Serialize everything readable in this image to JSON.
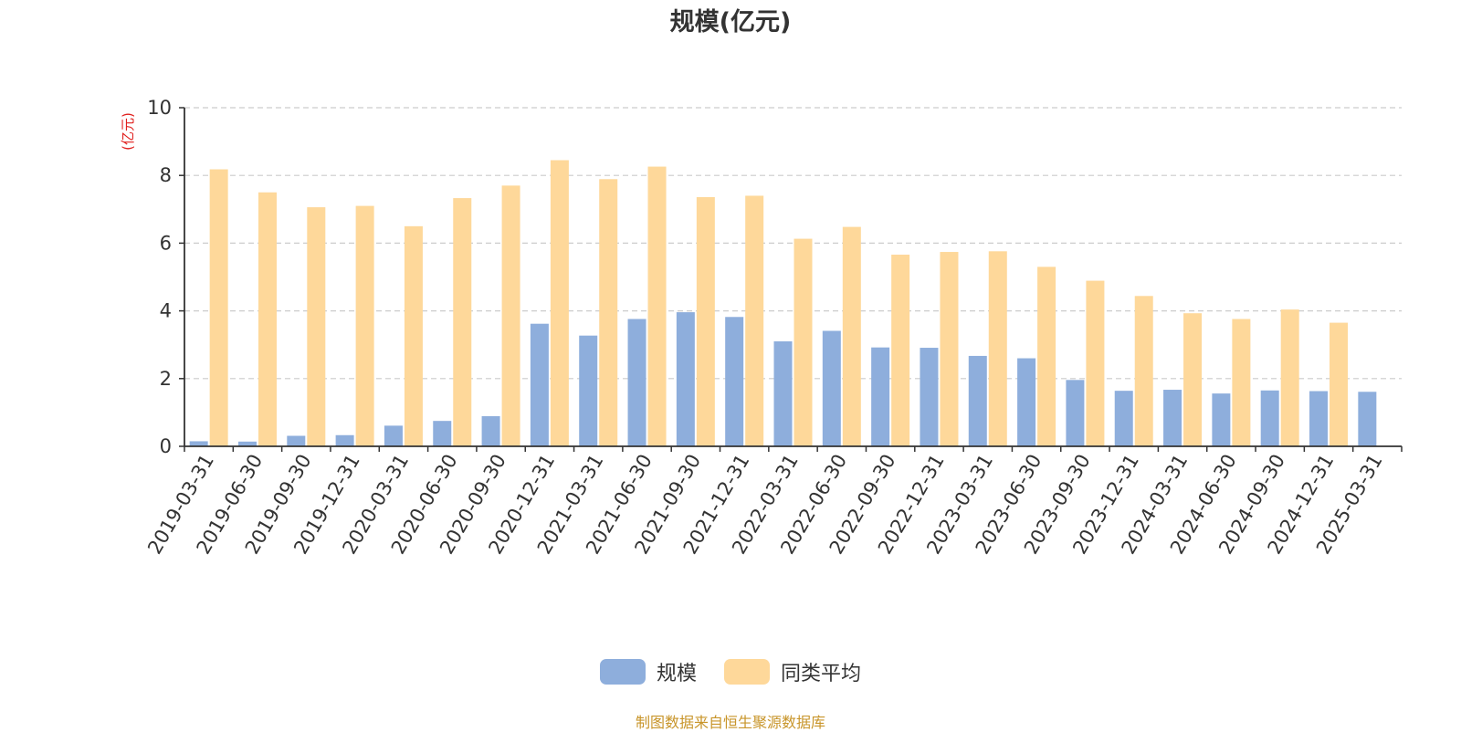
{
  "chart_data": {
    "type": "bar",
    "title": "规模(亿元)",
    "ylabel": "(亿元)",
    "ylim": [
      0,
      10
    ],
    "yticks": [
      0,
      2,
      4,
      6,
      8,
      10
    ],
    "grid": true,
    "legend_position": "bottom",
    "categories": [
      "2019-03-31",
      "2019-06-30",
      "2019-09-30",
      "2019-12-31",
      "2020-03-31",
      "2020-06-30",
      "2020-09-30",
      "2020-12-31",
      "2021-03-31",
      "2021-06-30",
      "2021-09-30",
      "2021-12-31",
      "2022-03-31",
      "2022-06-30",
      "2022-09-30",
      "2022-12-31",
      "2023-03-31",
      "2023-06-30",
      "2023-09-30",
      "2023-12-31",
      "2024-03-31",
      "2024-06-30",
      "2024-09-30",
      "2024-12-31",
      "2025-03-31"
    ],
    "series": [
      {
        "name": "规模",
        "color": "#8eaedc",
        "values": [
          0.15,
          0.14,
          0.31,
          0.33,
          0.61,
          0.75,
          0.89,
          3.62,
          3.27,
          3.76,
          3.96,
          3.82,
          3.1,
          3.41,
          2.92,
          2.91,
          2.67,
          2.6,
          1.96,
          1.64,
          1.67,
          1.56,
          1.65,
          1.63,
          1.61
        ]
      },
      {
        "name": "同类平均",
        "color": "#fed89a",
        "values": [
          8.18,
          7.5,
          7.06,
          7.1,
          6.5,
          7.33,
          7.7,
          8.45,
          7.89,
          8.26,
          7.36,
          7.4,
          6.13,
          6.48,
          5.66,
          5.74,
          5.76,
          5.3,
          4.89,
          4.44,
          3.93,
          3.76,
          4.04,
          3.65,
          null
        ]
      }
    ],
    "source_note": "制图数据来自恒生聚源数据库"
  }
}
